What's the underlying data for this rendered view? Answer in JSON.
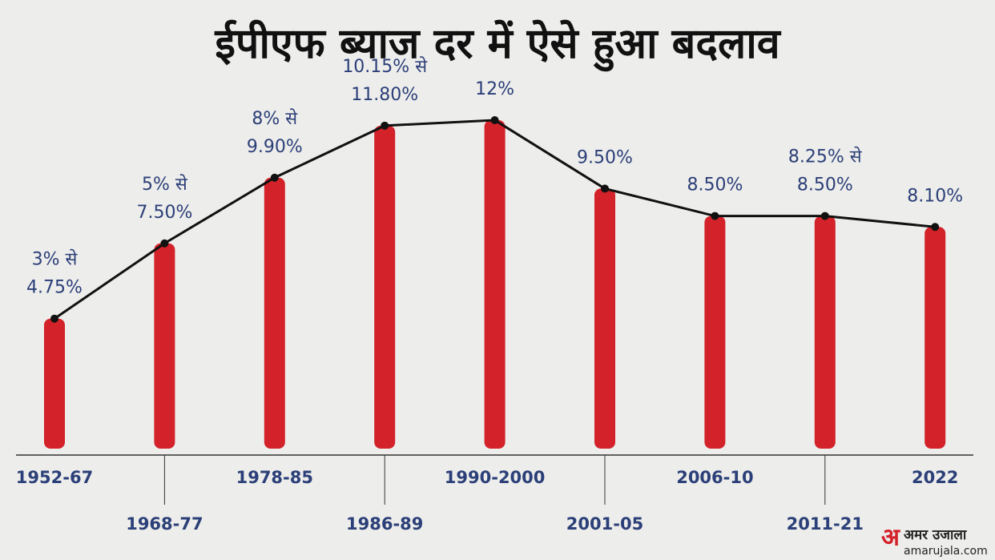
{
  "chart_data": {
    "type": "bar_line",
    "title": "ईपीएफ ब्याज दर में ऐसे हुआ बदलाव",
    "categories": [
      "1952-67",
      "1968-77",
      "1978-85",
      "1986-89",
      "1990-2000",
      "2001-05",
      "2006-10",
      "2011-21",
      "2022"
    ],
    "values": [
      4.75,
      7.5,
      9.9,
      11.8,
      12,
      9.5,
      8.5,
      8.5,
      8.1
    ],
    "value_labels": [
      [
        "3% से",
        "4.75%"
      ],
      [
        "5% से",
        "7.50%"
      ],
      [
        "8% से",
        "9.90%"
      ],
      [
        "10.15% से",
        "11.80%"
      ],
      [
        "12%"
      ],
      [
        "9.50%"
      ],
      [
        "8.50%"
      ],
      [
        "8.25% से",
        "8.50%"
      ],
      [
        "8.10%"
      ]
    ],
    "color": "#d32229",
    "line_color": "#111111",
    "label_color": "#2b3f78"
  },
  "brand": {
    "name": "अमर उजाला",
    "site": "amarujala.com"
  }
}
